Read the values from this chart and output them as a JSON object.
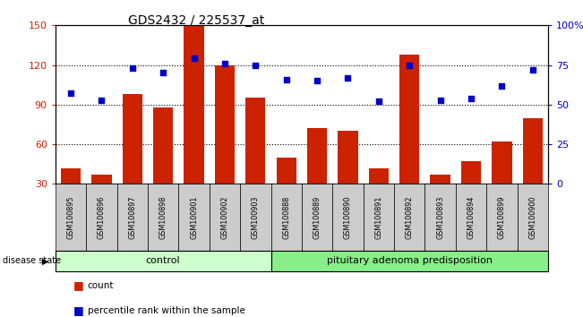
{
  "title": "GDS2432 / 225537_at",
  "samples": [
    "GSM100895",
    "GSM100896",
    "GSM100897",
    "GSM100898",
    "GSM100901",
    "GSM100902",
    "GSM100903",
    "GSM100888",
    "GSM100889",
    "GSM100890",
    "GSM100891",
    "GSM100892",
    "GSM100893",
    "GSM100894",
    "GSM100899",
    "GSM100900"
  ],
  "bar_values": [
    42,
    37,
    98,
    88,
    150,
    120,
    95,
    50,
    72,
    70,
    42,
    128,
    37,
    47,
    62,
    80
  ],
  "dot_values": [
    57,
    53,
    73,
    70,
    79,
    76,
    75,
    66,
    65,
    67,
    52,
    75,
    53,
    54,
    62,
    72
  ],
  "ylim_left": [
    30,
    150
  ],
  "ylim_right": [
    0,
    100
  ],
  "yticks_left": [
    30,
    60,
    90,
    120,
    150
  ],
  "yticks_right": [
    0,
    25,
    50,
    75,
    100
  ],
  "yticklabels_right": [
    "0",
    "25",
    "50",
    "75",
    "100%"
  ],
  "control_count": 7,
  "control_label": "control",
  "disease_label": "pituitary adenoma predisposition",
  "group_label": "disease state",
  "bar_color": "#cc2200",
  "dot_color": "#0000cc",
  "legend_count_label": "count",
  "legend_pct_label": "percentile rank within the sample",
  "control_group_color": "#ccffcc",
  "disease_group_color": "#88ee88",
  "background_color": "#ffffff",
  "tick_label_bg": "#cccccc",
  "grid_lines": [
    60,
    90,
    120
  ]
}
